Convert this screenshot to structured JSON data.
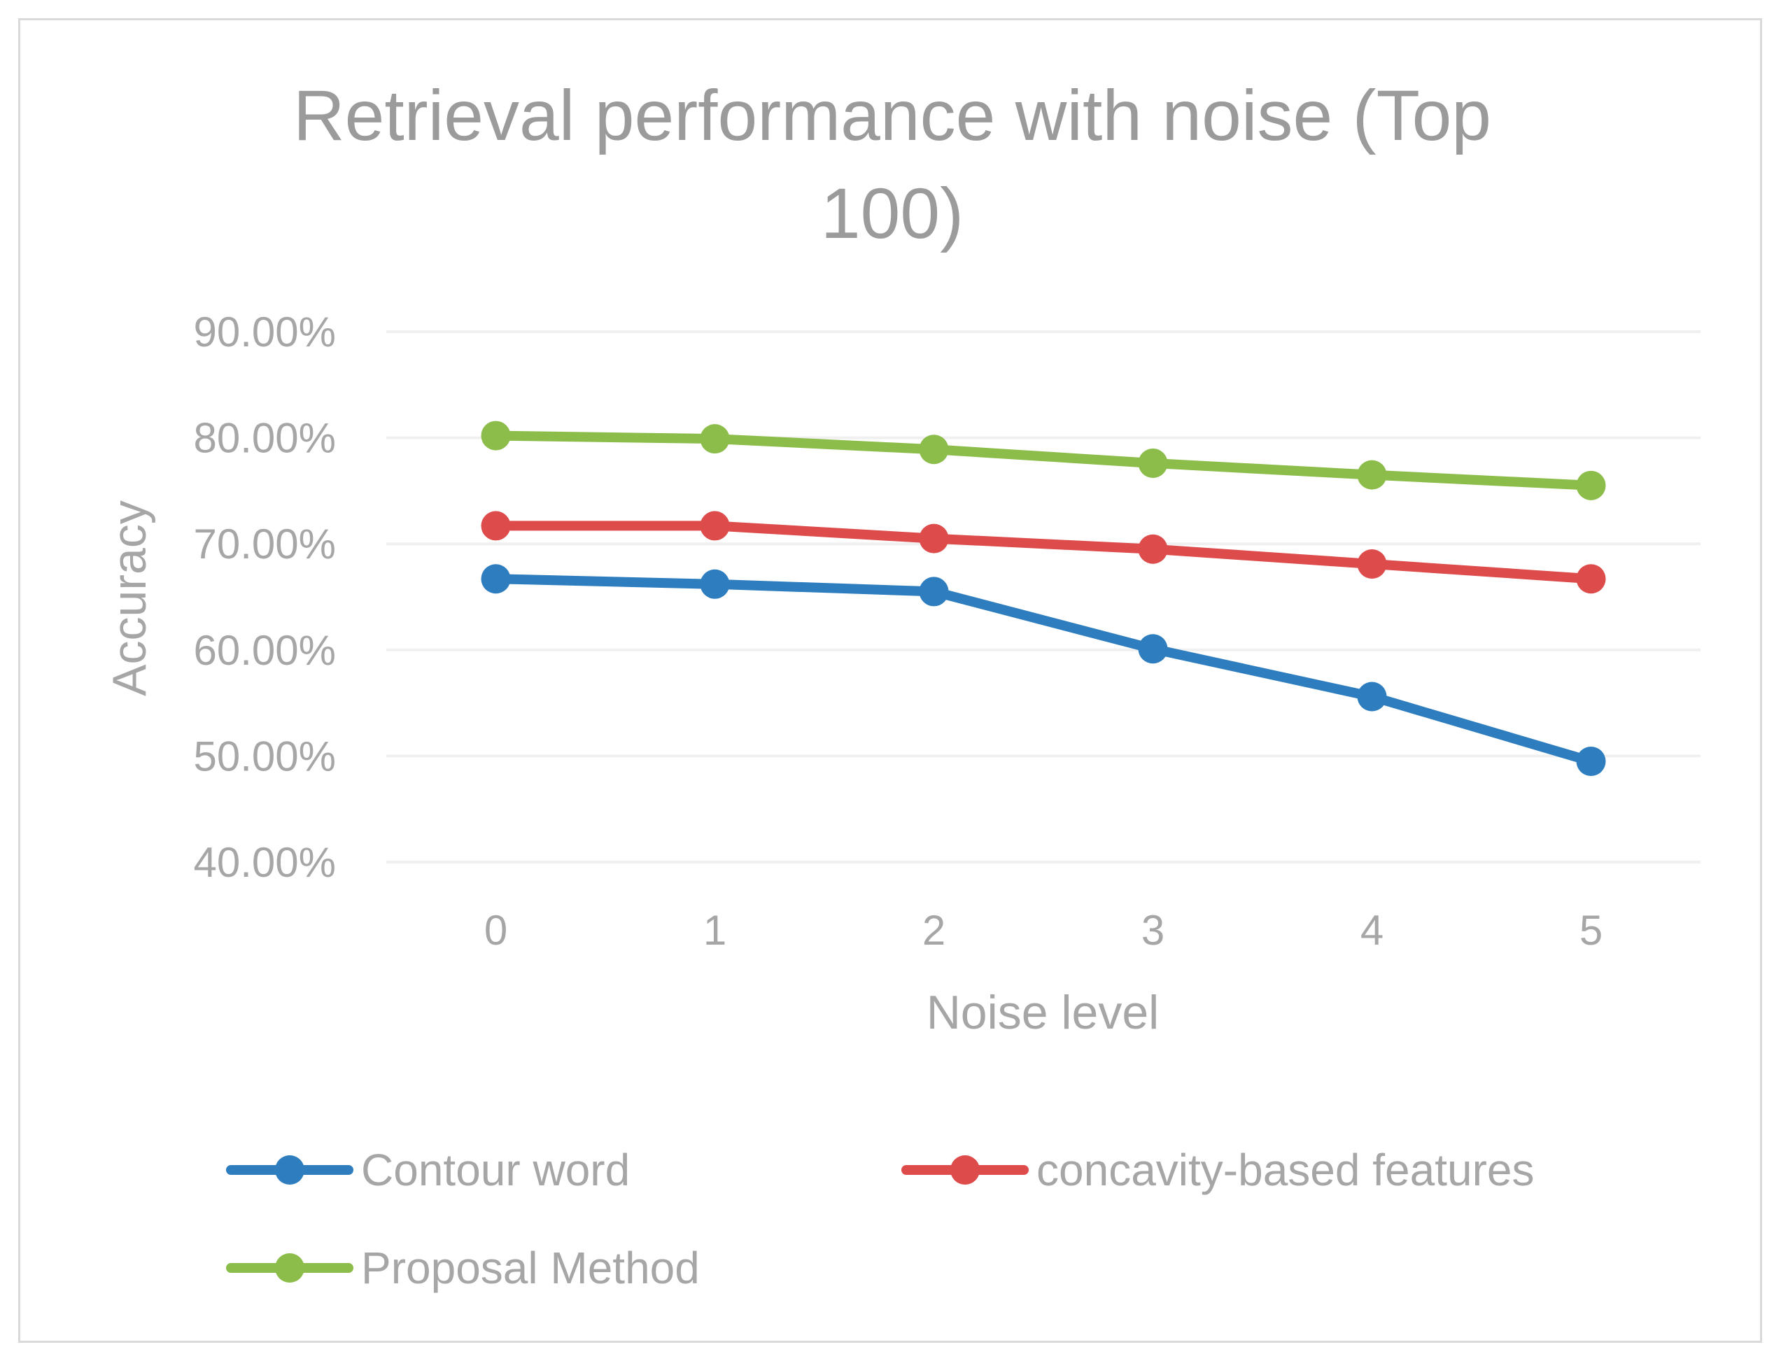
{
  "chart_data": {
    "type": "line",
    "title_lines": [
      "Retrieval performance with noise (Top",
      "100)"
    ],
    "xlabel": "Noise level",
    "ylabel": "Accuracy",
    "categories": [
      "0",
      "1",
      "2",
      "3",
      "4",
      "5"
    ],
    "ylim": [
      0.4,
      0.9
    ],
    "ytick_values": [
      0.4,
      0.5,
      0.6,
      0.7,
      0.8,
      0.9
    ],
    "ytick_labels": [
      "40.00%",
      "50.00%",
      "60.00%",
      "70.00%",
      "80.00%",
      "90.00%"
    ],
    "grid": true,
    "legend_position": "bottom",
    "series": [
      {
        "name": "Contour word",
        "color": "#2e7ebf",
        "values": [
          0.667,
          0.662,
          0.655,
          0.601,
          0.556,
          0.495
        ]
      },
      {
        "name": "concavity-based features",
        "color": "#dd4b4b",
        "values": [
          0.717,
          0.717,
          0.705,
          0.695,
          0.681,
          0.667
        ]
      },
      {
        "name": "Proposal Method",
        "color": "#8cbd4a",
        "values": [
          0.802,
          0.799,
          0.789,
          0.776,
          0.765,
          0.755
        ]
      }
    ]
  }
}
